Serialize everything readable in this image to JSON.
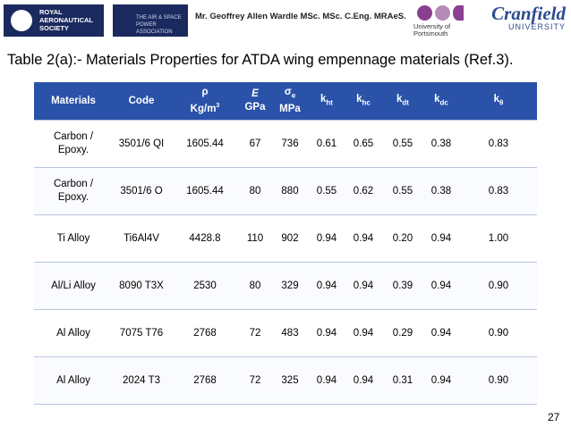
{
  "header": {
    "raes": [
      "ROYAL",
      "AERONAUTICAL",
      "SOCIETY"
    ],
    "aspa": [
      "THE AIR & SPACE",
      "POWER ASSOCIATION"
    ],
    "author": "Mr. Geoffrey Allen Wardle MSc. MSc. C.Eng. MRAeS.",
    "portsmouth": [
      "University of",
      "Portsmouth"
    ],
    "cranfield": [
      "Cranfield",
      "UNIVERSITY"
    ]
  },
  "title": "Table 2(a):- Materials Properties for ATDA wing empennage materials (Ref.3).",
  "table": {
    "header": [
      {
        "text": "Materials"
      },
      {
        "text": "Code"
      },
      {
        "symbol": "ρ",
        "unit": "Kg/m",
        "unit_sup": "3"
      },
      {
        "symbol": "E",
        "unit": "GPa"
      },
      {
        "symbol": "σ",
        "symbol_sub": "e",
        "unit": "MPa"
      },
      {
        "symbol": "k",
        "symbol_sub": "ht"
      },
      {
        "symbol": "k",
        "symbol_sub": "hc"
      },
      {
        "symbol": "k",
        "symbol_sub": "dt"
      },
      {
        "symbol": "k",
        "symbol_sub": "dc"
      },
      {
        "symbol": "k",
        "symbol_sub": "θ"
      }
    ],
    "rows": [
      [
        "Carbon / Epoxy.",
        "3501/6 QI",
        "1605.44",
        "67",
        "736",
        "0.61",
        "0.65",
        "0.55",
        "0.38",
        "0.83"
      ],
      [
        "Carbon / Epoxy.",
        "3501/6 O",
        "1605.44",
        "80",
        "880",
        "0.55",
        "0.62",
        "0.55",
        "0.38",
        "0.83"
      ],
      [
        "Ti Alloy",
        "Ti6Al4V",
        "4428.8",
        "110",
        "902",
        "0.94",
        "0.94",
        "0.20",
        "0.94",
        "1.00"
      ],
      [
        "Al/Li Alloy",
        "8090 T3X",
        "2530",
        "80",
        "329",
        "0.94",
        "0.94",
        "0.39",
        "0.94",
        "0.90"
      ],
      [
        "Al Alloy",
        "7075 T76",
        "2768",
        "72",
        "483",
        "0.94",
        "0.94",
        "0.29",
        "0.94",
        "0.90"
      ],
      [
        "Al Alloy",
        "2024 T3",
        "2768",
        "72",
        "325",
        "0.94",
        "0.94",
        "0.31",
        "0.94",
        "0.90"
      ]
    ]
  },
  "page_number": "27"
}
